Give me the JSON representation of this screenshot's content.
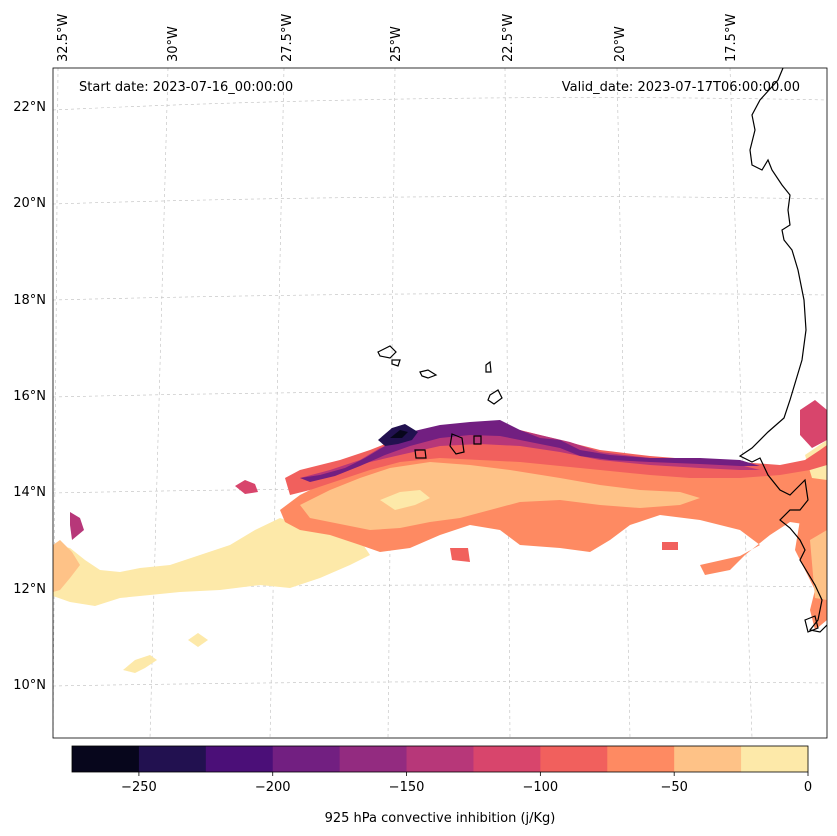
{
  "map": {
    "start_date": "Start date: 2023-07-16_00:00:00",
    "valid_date": "Valid_date: 2023-07-17T06:00:00.00",
    "field": "925 hPa convective inhibition",
    "lon_ticks": [
      "32.5°W",
      "30°W",
      "27.5°W",
      "25°W",
      "22.5°W",
      "20°W",
      "17.5°W"
    ],
    "lat_ticks": [
      "22°N",
      "20°N",
      "18°N",
      "16°N",
      "14°N",
      "12°N",
      "10°N"
    ]
  },
  "colorbar": {
    "label": "925 hPa convective inhibition (j/Kg)",
    "tick_labels": [
      "−250",
      "−200",
      "−150",
      "−100",
      "−50",
      "0"
    ],
    "levels": [
      -275,
      -250,
      -225,
      -200,
      -175,
      -150,
      -125,
      -100,
      -75,
      -50,
      -25,
      0
    ],
    "colors": [
      "#07061c",
      "#221150",
      "#4b0f78",
      "#721f81",
      "#932b80",
      "#b73779",
      "#d8456c",
      "#f1605d",
      "#fe8a62",
      "#fec287",
      "#fde9a9"
    ]
  }
}
